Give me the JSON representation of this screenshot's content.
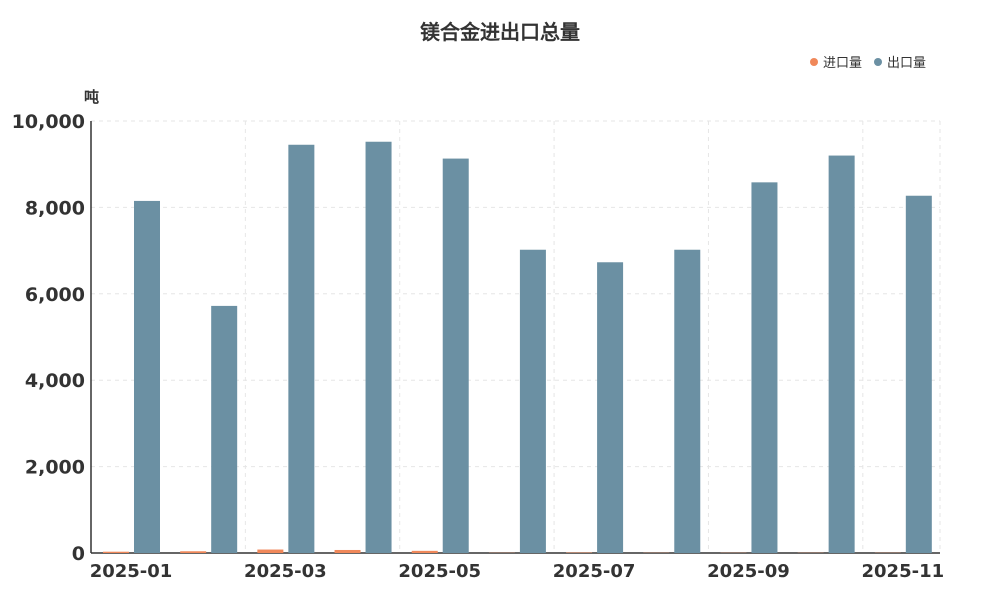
{
  "title": "镁合金进出口总量",
  "y_unit": "吨",
  "legend": [
    {
      "label": "进口量",
      "color": "#f0885a"
    },
    {
      "label": "出口量",
      "color": "#6b90a3"
    }
  ],
  "chart_data": {
    "type": "bar",
    "title": "镁合金进出口总量",
    "ylabel": "吨",
    "ylim": [
      0,
      10000
    ],
    "grid": true,
    "legend_position": "top-right",
    "categories": [
      "2025-01",
      "2025-02",
      "2025-03",
      "2025-04",
      "2025-05",
      "2025-06",
      "2025-07",
      "2025-08",
      "2025-09",
      "2025-10",
      "2025-11"
    ],
    "x_tick_labels": [
      "2025-01",
      "",
      "2025-03",
      "",
      "2025-05",
      "",
      "2025-07",
      "",
      "2025-09",
      "",
      "2025-11"
    ],
    "y_ticks": [
      0,
      2000,
      4000,
      6000,
      8000,
      10000
    ],
    "y_tick_labels": [
      "0",
      "2,000",
      "4,000",
      "6,000",
      "8,000",
      "10,000"
    ],
    "series": [
      {
        "name": "进口量",
        "color": "#f0885a",
        "values": [
          30,
          40,
          80,
          70,
          50,
          5,
          10,
          5,
          5,
          5,
          5
        ]
      },
      {
        "name": "出口量",
        "color": "#6b90a3",
        "values": [
          8150,
          5720,
          9450,
          9520,
          9130,
          7020,
          6730,
          7020,
          8580,
          9200,
          8270
        ]
      }
    ]
  }
}
